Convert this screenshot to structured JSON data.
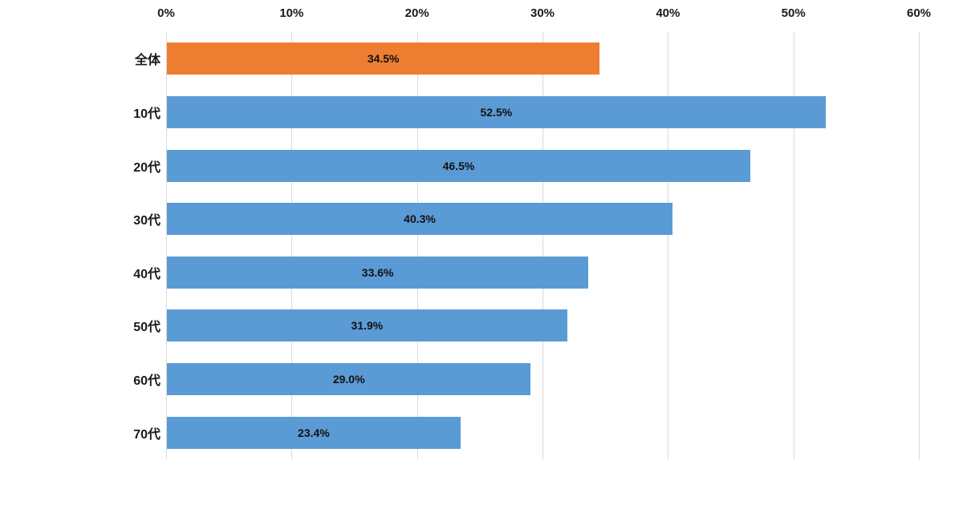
{
  "chart_data": {
    "type": "bar",
    "orientation": "horizontal",
    "title": "",
    "xlabel": "",
    "ylabel": "",
    "categories": [
      "全体",
      "10代",
      "20代",
      "30代",
      "40代",
      "50代",
      "60代",
      "70代"
    ],
    "values": [
      34.5,
      52.5,
      46.5,
      40.3,
      33.6,
      31.9,
      29.0,
      23.4
    ],
    "value_labels": [
      "34.5%",
      "52.5%",
      "46.5%",
      "40.3%",
      "33.6%",
      "31.9%",
      "29.0%",
      "23.4%"
    ],
    "bar_colors": [
      "#ED7D31",
      "#5B9BD5",
      "#5B9BD5",
      "#5B9BD5",
      "#5B9BD5",
      "#5B9BD5",
      "#5B9BD5",
      "#5B9BD5"
    ],
    "highlight_color": "#ED7D31",
    "series_color": "#5B9BD5",
    "label_color": "#111111",
    "axis": {
      "position": "top",
      "tick_labels": [
        "0%",
        "10%",
        "20%",
        "30%",
        "40%",
        "50%",
        "60%"
      ],
      "tick_values": [
        0,
        10,
        20,
        30,
        40,
        50,
        60
      ],
      "xlim": [
        0,
        60
      ]
    },
    "grid": true,
    "gridline_color": "#D9D9D9",
    "legend": false
  }
}
